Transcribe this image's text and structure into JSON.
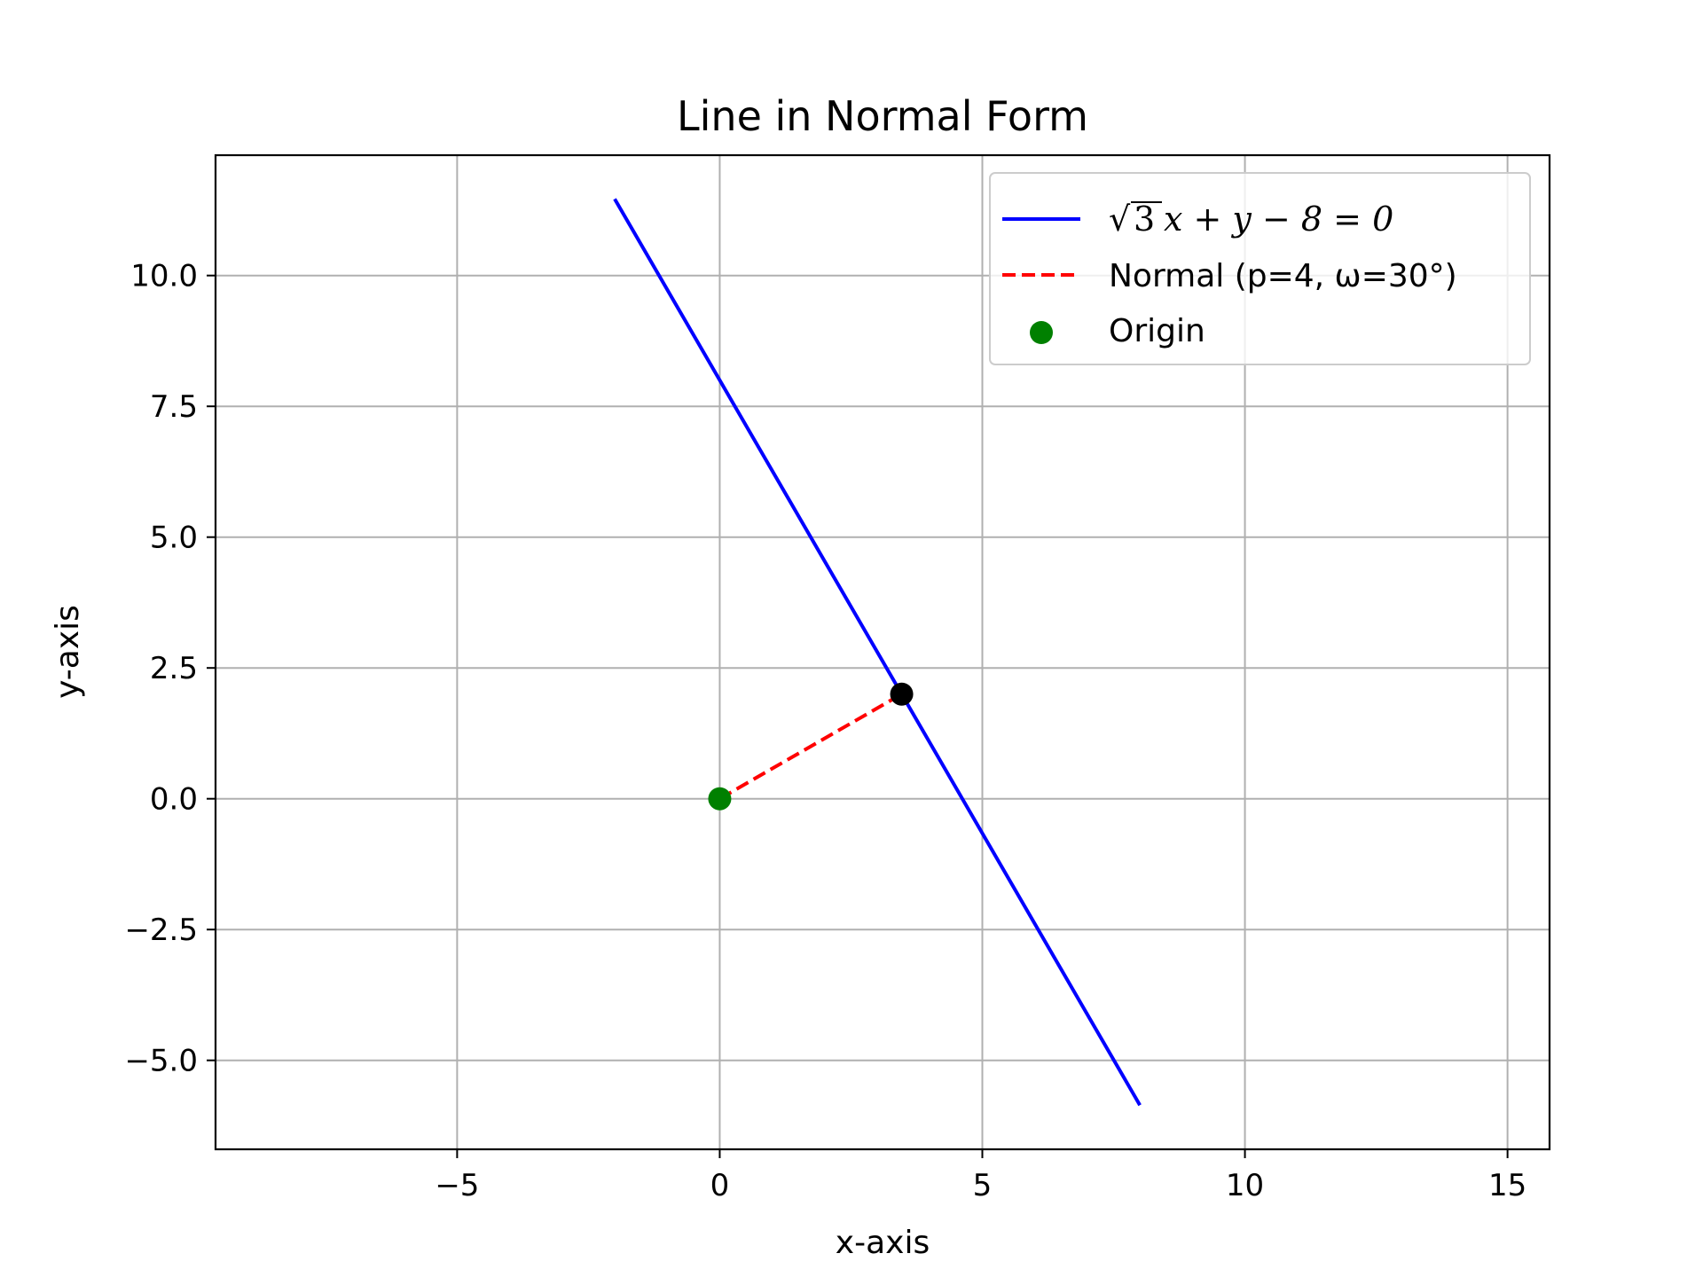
{
  "chart_data": {
    "type": "line",
    "title": "Line in Normal Form",
    "xlabel": "x-axis",
    "ylabel": "y-axis",
    "xlim": [
      -9.6,
      15.8
    ],
    "ylim": [
      -6.7,
      12.3
    ],
    "xticks": [
      -5,
      0,
      5,
      10,
      15
    ],
    "xtick_labels": [
      "−5",
      "0",
      "5",
      "10",
      "15"
    ],
    "yticks": [
      -5.0,
      -2.5,
      0.0,
      2.5,
      5.0,
      7.5,
      10.0
    ],
    "ytick_labels": [
      "−5.0",
      "−2.5",
      "0.0",
      "2.5",
      "5.0",
      "7.5",
      "10.0"
    ],
    "grid": true,
    "legend_position": "top-right",
    "series": [
      {
        "name": "√3x + y − 8 = 0",
        "kind": "line",
        "style": "solid",
        "color": "#0000ff",
        "x": [
          -2,
          8
        ],
        "y": [
          11.464,
          -5.856
        ]
      },
      {
        "name": "Normal (p=4, ω=30°)",
        "kind": "line",
        "style": "dashed",
        "color": "#ff0000",
        "x": [
          0,
          3.464
        ],
        "y": [
          0,
          2
        ]
      },
      {
        "name": "Origin",
        "kind": "scatter",
        "color": "#008000",
        "x": [
          0
        ],
        "y": [
          0
        ]
      },
      {
        "kind": "scatter",
        "color": "#000000",
        "x": [
          3.464
        ],
        "y": [
          2
        ]
      }
    ],
    "legend_math": {
      "root": "√",
      "radicand": "3",
      "rest": "x + y − 8 = 0"
    }
  }
}
